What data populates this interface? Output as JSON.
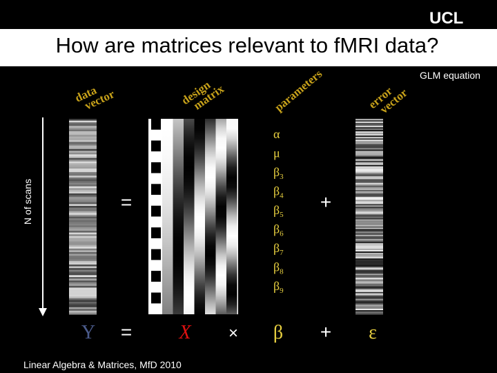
{
  "logo": "UCL",
  "title": "How are matrices relevant to fMRI data?",
  "subtitle": "GLM equation",
  "labels": {
    "data_vector": [
      "data",
      "vector"
    ],
    "design_matrix": [
      "design",
      "matrix"
    ],
    "parameters": "parameters",
    "error_vector": [
      "error",
      "vector"
    ],
    "n_scans": "N of scans"
  },
  "parameters": [
    {
      "symbol": "α",
      "sub": ""
    },
    {
      "symbol": "μ",
      "sub": ""
    },
    {
      "symbol": "β",
      "sub": "3"
    },
    {
      "symbol": "β",
      "sub": "4"
    },
    {
      "symbol": "β",
      "sub": "5"
    },
    {
      "symbol": "β",
      "sub": "6"
    },
    {
      "symbol": "β",
      "sub": "7"
    },
    {
      "symbol": "β",
      "sub": "8"
    },
    {
      "symbol": "β",
      "sub": "9"
    }
  ],
  "middle": {
    "equals": "=",
    "plus": "+"
  },
  "equation": {
    "y": "Y",
    "equals": "=",
    "x": "X",
    "times": "×",
    "beta": "β",
    "plus": "+",
    "epsilon": "ε"
  },
  "footer": "Linear Algebra & Matrices, MfD 2010"
}
